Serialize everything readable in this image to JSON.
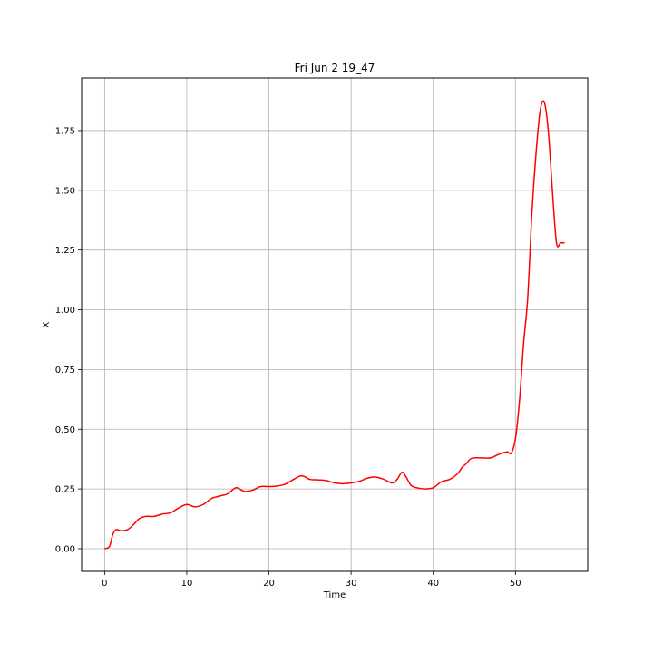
{
  "chart_data": {
    "type": "line",
    "title": "Fri Jun  2 19_47",
    "xlabel": "Time",
    "ylabel": "X",
    "xlim": [
      -2.8,
      58.8
    ],
    "ylim": [
      -0.095,
      1.97
    ],
    "xticks": [
      0,
      10,
      20,
      30,
      40,
      50
    ],
    "xtick_labels": [
      "0",
      "10",
      "20",
      "30",
      "40",
      "50"
    ],
    "yticks": [
      0.0,
      0.25,
      0.5,
      0.75,
      1.0,
      1.25,
      1.5,
      1.75
    ],
    "ytick_labels": [
      "0.00",
      "0.25",
      "0.50",
      "0.75",
      "1.00",
      "1.25",
      "1.50",
      "1.75"
    ],
    "grid": true,
    "series": [
      {
        "color": "#ff0000",
        "x": [
          0,
          0.6,
          1,
          1.4,
          2,
          2.8,
          3.5,
          4.2,
          5,
          6,
          7,
          8,
          9,
          10,
          11,
          12,
          13,
          14,
          15,
          16,
          17,
          18,
          19,
          20,
          21,
          22,
          23,
          24,
          25,
          26,
          27,
          28,
          29,
          30,
          31,
          32,
          33,
          34,
          35,
          35.6,
          36.2,
          36.7,
          37.3,
          38,
          39,
          40,
          41,
          42,
          43,
          43.5,
          44,
          44.5,
          45,
          46,
          47,
          48,
          49,
          49.5,
          50,
          50.5,
          51,
          51.5,
          52,
          52.5,
          53,
          53.5,
          54,
          54.5,
          55,
          55.5,
          56
        ],
        "y": [
          0.0,
          0.01,
          0.06,
          0.08,
          0.075,
          0.08,
          0.1,
          0.125,
          0.135,
          0.135,
          0.145,
          0.15,
          0.17,
          0.185,
          0.175,
          0.185,
          0.21,
          0.22,
          0.23,
          0.255,
          0.24,
          0.245,
          0.26,
          0.26,
          0.262,
          0.27,
          0.29,
          0.305,
          0.29,
          0.288,
          0.285,
          0.275,
          0.272,
          0.275,
          0.282,
          0.295,
          0.3,
          0.29,
          0.275,
          0.29,
          0.32,
          0.3,
          0.265,
          0.255,
          0.25,
          0.255,
          0.28,
          0.29,
          0.315,
          0.34,
          0.355,
          0.375,
          0.38,
          0.38,
          0.38,
          0.395,
          0.405,
          0.4,
          0.46,
          0.62,
          0.86,
          1.05,
          1.4,
          1.65,
          1.83,
          1.87,
          1.75,
          1.5,
          1.28,
          1.28,
          1.28
        ]
      }
    ]
  }
}
